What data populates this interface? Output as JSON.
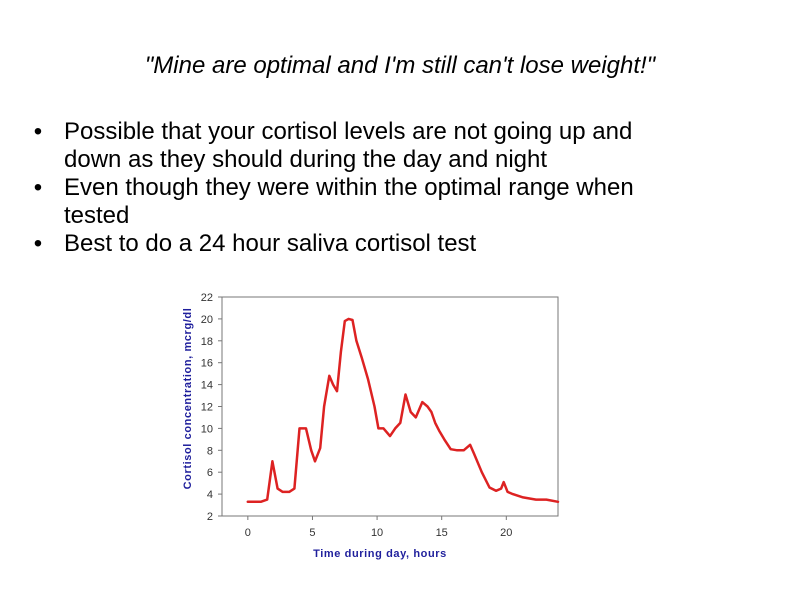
{
  "slide": {
    "title": "\"Mine are optimal and I'm still can't lose weight!\"",
    "bullet_symbol": "•",
    "bullets": [
      {
        "lines": [
          "Possible that your cortisol levels are not going up and",
          "down as they should during the day and night"
        ]
      },
      {
        "lines": [
          "Even though they were within the optimal range when",
          "tested"
        ]
      },
      {
        "lines": [
          "Best to do a 24 hour saliva cortisol test"
        ]
      }
    ]
  },
  "colors": {
    "line": "#dd2222",
    "axis_title": "#1f1f9c",
    "frame": "#777777"
  },
  "chart_data": {
    "type": "line",
    "xlabel": "Time during day, hours",
    "ylabel": "Cortisol concentration, mcrg/dl",
    "xlim": [
      -2,
      24
    ],
    "ylim": [
      2,
      22
    ],
    "xticks": [
      0,
      5,
      10,
      15,
      20
    ],
    "yticks": [
      2,
      4,
      6,
      8,
      10,
      12,
      14,
      16,
      18,
      20,
      22
    ],
    "grid": false,
    "series": [
      {
        "x": [
          0,
          1,
          1.5,
          1.9,
          2.3,
          2.7,
          3.2,
          3.6,
          4.0,
          4.5,
          4.9,
          5.2,
          5.6,
          5.9,
          6.3,
          6.6,
          6.9,
          7.2,
          7.5,
          7.8,
          8.1,
          8.4,
          8.8,
          9.3,
          9.8,
          10.1,
          10.5,
          11.0,
          11.4,
          11.8,
          12.2,
          12.6,
          13.0,
          13.5,
          13.9,
          14.2,
          14.5,
          14.8,
          15.2,
          15.7,
          16.2,
          16.7,
          17.2,
          17.5,
          18.1,
          18.7,
          19.2,
          19.6,
          19.8,
          20.1,
          20.5,
          21.3,
          22.3,
          23.1,
          24
        ],
        "y": [
          3.3,
          3.3,
          3.5,
          7.0,
          4.5,
          4.2,
          4.2,
          4.5,
          10.0,
          10.0,
          8.0,
          7.0,
          8.2,
          12.0,
          14.8,
          14.0,
          13.4,
          17.0,
          19.8,
          20.0,
          19.9,
          18.0,
          16.5,
          14.5,
          12.0,
          10.0,
          10.0,
          9.3,
          10.0,
          10.5,
          13.1,
          11.5,
          11.0,
          12.4,
          12.0,
          11.5,
          10.5,
          9.8,
          9.0,
          8.1,
          8.0,
          8.0,
          8.5,
          7.7,
          6.0,
          4.6,
          4.3,
          4.5,
          5.1,
          4.2,
          4.0,
          3.7,
          3.5,
          3.5,
          3.3
        ]
      }
    ]
  }
}
